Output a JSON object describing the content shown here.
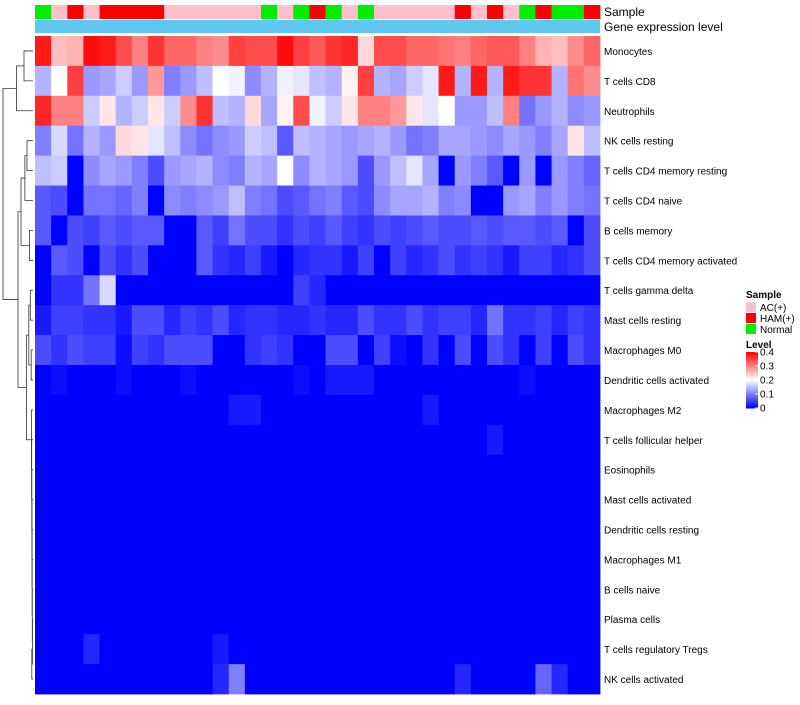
{
  "chart_data": {
    "type": "heatmap",
    "title": "",
    "annotation_labels": {
      "sample": "Sample",
      "gene_expression": "Gene expression level"
    },
    "rows": [
      "Monocytes",
      "T cells CD8",
      "Neutrophils",
      "NK cells resting",
      "T cells CD4 memory resting",
      "T cells CD4 naive",
      "B cells memory",
      "T cells CD4 memory activated",
      "T cells gamma delta",
      "Mast cells resting",
      "Macrophages M0",
      "Dendritic cells activated",
      "Macrophages M2",
      "T cells follicular helper",
      "Eosinophils",
      "Mast cells activated",
      "Dendritic cells resting",
      "Macrophages M1",
      "B cells naive",
      "Plasma cells",
      "T cells regulatory  Tregs",
      "NK cells activated"
    ],
    "sample_groups": [
      "Normal",
      "AC(+)",
      "HAM(+)",
      "AC(+)",
      "HAM(+)",
      "HAM(+)",
      "HAM(+)",
      "HAM(+)",
      "AC(+)",
      "AC(+)",
      "AC(+)",
      "AC(+)",
      "AC(+)",
      "AC(+)",
      "Normal",
      "AC(+)",
      "Normal",
      "HAM(+)",
      "Normal",
      "AC(+)",
      "Normal",
      "AC(+)",
      "AC(+)",
      "AC(+)",
      "AC(+)",
      "AC(+)",
      "HAM(+)",
      "AC(+)",
      "HAM(+)",
      "AC(+)",
      "Normal",
      "HAM(+)",
      "Normal",
      "Normal",
      "HAM(+)"
    ],
    "values": [
      [
        0.38,
        0.25,
        0.26,
        0.39,
        0.38,
        0.34,
        0.3,
        0.36,
        0.32,
        0.32,
        0.3,
        0.29,
        0.35,
        0.34,
        0.34,
        0.39,
        0.35,
        0.33,
        0.36,
        0.37,
        0.23,
        0.34,
        0.34,
        0.32,
        0.32,
        0.31,
        0.3,
        0.32,
        0.33,
        0.33,
        0.3,
        0.26,
        0.25,
        0.29,
        0.32
      ],
      [
        0.14,
        0.2,
        0.35,
        0.12,
        0.13,
        0.16,
        0.12,
        0.28,
        0.1,
        0.12,
        0.15,
        0.2,
        0.19,
        0.11,
        0.14,
        0.19,
        0.18,
        0.15,
        0.14,
        0.21,
        0.35,
        0.14,
        0.13,
        0.16,
        0.18,
        0.38,
        0.14,
        0.38,
        0.14,
        0.38,
        0.36,
        0.36,
        0.14,
        0.31,
        0.29
      ],
      [
        0.37,
        0.3,
        0.3,
        0.16,
        0.22,
        0.14,
        0.16,
        0.22,
        0.16,
        0.29,
        0.36,
        0.15,
        0.14,
        0.23,
        0.13,
        0.21,
        0.34,
        0.19,
        0.16,
        0.22,
        0.3,
        0.3,
        0.28,
        0.22,
        0.18,
        0.2,
        0.12,
        0.12,
        0.15,
        0.3,
        0.09,
        0.12,
        0.14,
        0.11,
        0.12
      ],
      [
        0.1,
        0.17,
        0.09,
        0.14,
        0.12,
        0.23,
        0.22,
        0.18,
        0.15,
        0.11,
        0.09,
        0.11,
        0.12,
        0.16,
        0.15,
        0.07,
        0.15,
        0.14,
        0.13,
        0.12,
        0.13,
        0.14,
        0.12,
        0.09,
        0.1,
        0.13,
        0.13,
        0.12,
        0.11,
        0.13,
        0.12,
        0.1,
        0.13,
        0.22,
        0.15
      ],
      [
        0.15,
        0.16,
        0.0,
        0.11,
        0.13,
        0.12,
        0.1,
        0.06,
        0.12,
        0.13,
        0.14,
        0.11,
        0.1,
        0.14,
        0.13,
        0.2,
        0.11,
        0.14,
        0.13,
        0.12,
        0.06,
        0.12,
        0.15,
        0.18,
        0.13,
        0.0,
        0.12,
        0.1,
        0.07,
        0.0,
        0.12,
        0.0,
        0.12,
        0.1,
        0.08
      ],
      [
        0.07,
        0.06,
        0.0,
        0.09,
        0.09,
        0.08,
        0.1,
        0.0,
        0.11,
        0.1,
        0.11,
        0.12,
        0.15,
        0.1,
        0.09,
        0.06,
        0.07,
        0.09,
        0.1,
        0.07,
        0.06,
        0.11,
        0.13,
        0.13,
        0.14,
        0.1,
        0.11,
        0.0,
        0.0,
        0.12,
        0.13,
        0.1,
        0.12,
        0.1,
        0.09
      ],
      [
        0.07,
        0.0,
        0.06,
        0.05,
        0.07,
        0.06,
        0.07,
        0.07,
        0.0,
        0.0,
        0.07,
        0.05,
        0.09,
        0.06,
        0.06,
        0.04,
        0.06,
        0.05,
        0.07,
        0.05,
        0.04,
        0.06,
        0.05,
        0.06,
        0.07,
        0.06,
        0.06,
        0.07,
        0.06,
        0.07,
        0.07,
        0.06,
        0.07,
        0.0,
        0.06
      ],
      [
        0.0,
        0.07,
        0.06,
        0.0,
        0.06,
        0.04,
        0.06,
        0.0,
        0.0,
        0.0,
        0.07,
        0.04,
        0.03,
        0.05,
        0.02,
        0.0,
        0.03,
        0.04,
        0.04,
        0.02,
        0.05,
        0.0,
        0.05,
        0.03,
        0.04,
        0.06,
        0.04,
        0.05,
        0.04,
        0.02,
        0.05,
        0.05,
        0.03,
        0.04,
        0.06
      ],
      [
        0.0,
        0.04,
        0.04,
        0.09,
        0.17,
        0.0,
        0.0,
        0.0,
        0.0,
        0.0,
        0.0,
        0.0,
        0.0,
        0.0,
        0.0,
        0.0,
        0.05,
        0.03,
        0.0,
        0.0,
        0.0,
        0.0,
        0.0,
        0.0,
        0.0,
        0.0,
        0.0,
        0.0,
        0.0,
        0.0,
        0.0,
        0.0,
        0.0,
        0.0,
        0.0
      ],
      [
        0.02,
        0.05,
        0.05,
        0.04,
        0.04,
        0.02,
        0.06,
        0.06,
        0.03,
        0.05,
        0.04,
        0.06,
        0.03,
        0.04,
        0.04,
        0.03,
        0.03,
        0.04,
        0.03,
        0.03,
        0.06,
        0.04,
        0.04,
        0.06,
        0.04,
        0.05,
        0.05,
        0.03,
        0.09,
        0.04,
        0.04,
        0.05,
        0.03,
        0.05,
        0.04
      ],
      [
        0.06,
        0.04,
        0.06,
        0.05,
        0.05,
        0.01,
        0.05,
        0.04,
        0.06,
        0.06,
        0.06,
        0.0,
        0.0,
        0.04,
        0.05,
        0.04,
        0.0,
        0.0,
        0.06,
        0.06,
        0.0,
        0.05,
        0.01,
        0.0,
        0.04,
        0.0,
        0.06,
        0.0,
        0.06,
        0.04,
        0.0,
        0.05,
        0.0,
        0.06,
        0.04
      ],
      [
        0.0,
        0.01,
        0.0,
        0.0,
        0.0,
        0.01,
        0.0,
        0.0,
        0.0,
        0.01,
        0.0,
        0.0,
        0.0,
        0.0,
        0.0,
        0.0,
        0.01,
        0.0,
        0.02,
        0.02,
        0.02,
        0.0,
        0.0,
        0.0,
        0.0,
        0.0,
        0.0,
        0.0,
        0.0,
        0.0,
        0.01,
        0.0,
        0.0,
        0.0,
        0.0
      ],
      [
        0.0,
        0.0,
        0.0,
        0.0,
        0.0,
        0.0,
        0.0,
        0.0,
        0.0,
        0.0,
        0.0,
        0.0,
        0.02,
        0.02,
        0.0,
        0.0,
        0.0,
        0.0,
        0.0,
        0.0,
        0.0,
        0.0,
        0.0,
        0.0,
        0.02,
        0.0,
        0.0,
        0.0,
        0.0,
        0.0,
        0.0,
        0.0,
        0.0,
        0.0,
        0.0
      ],
      [
        0.0,
        0.0,
        0.0,
        0.0,
        0.0,
        0.0,
        0.0,
        0.0,
        0.0,
        0.0,
        0.0,
        0.0,
        0.0,
        0.0,
        0.0,
        0.0,
        0.0,
        0.0,
        0.0,
        0.0,
        0.0,
        0.0,
        0.0,
        0.0,
        0.0,
        0.0,
        0.0,
        0.0,
        0.02,
        0.0,
        0.0,
        0.0,
        0.0,
        0.0,
        0.0
      ],
      [
        0.0,
        0.0,
        0.0,
        0.0,
        0.0,
        0.0,
        0.0,
        0.0,
        0.0,
        0.0,
        0.0,
        0.0,
        0.0,
        0.0,
        0.0,
        0.0,
        0.0,
        0.0,
        0.0,
        0.0,
        0.0,
        0.0,
        0.0,
        0.0,
        0.0,
        0.0,
        0.0,
        0.0,
        0.0,
        0.0,
        0.0,
        0.0,
        0.0,
        0.0,
        0.0
      ],
      [
        0.0,
        0.0,
        0.0,
        0.0,
        0.0,
        0.0,
        0.0,
        0.0,
        0.0,
        0.0,
        0.0,
        0.0,
        0.0,
        0.0,
        0.0,
        0.0,
        0.0,
        0.0,
        0.0,
        0.0,
        0.0,
        0.0,
        0.0,
        0.0,
        0.0,
        0.0,
        0.0,
        0.0,
        0.0,
        0.0,
        0.0,
        0.0,
        0.0,
        0.0,
        0.0
      ],
      [
        0.0,
        0.0,
        0.0,
        0.0,
        0.0,
        0.0,
        0.0,
        0.0,
        0.0,
        0.0,
        0.0,
        0.0,
        0.0,
        0.0,
        0.0,
        0.0,
        0.0,
        0.0,
        0.0,
        0.0,
        0.0,
        0.0,
        0.0,
        0.0,
        0.0,
        0.0,
        0.0,
        0.0,
        0.0,
        0.0,
        0.0,
        0.0,
        0.0,
        0.0,
        0.0
      ],
      [
        0.0,
        0.0,
        0.0,
        0.0,
        0.0,
        0.0,
        0.0,
        0.0,
        0.0,
        0.0,
        0.0,
        0.0,
        0.0,
        0.0,
        0.0,
        0.0,
        0.0,
        0.0,
        0.0,
        0.0,
        0.0,
        0.0,
        0.0,
        0.0,
        0.0,
        0.0,
        0.0,
        0.0,
        0.0,
        0.0,
        0.0,
        0.0,
        0.0,
        0.0,
        0.0
      ],
      [
        0.0,
        0.0,
        0.0,
        0.0,
        0.0,
        0.0,
        0.0,
        0.0,
        0.0,
        0.0,
        0.0,
        0.0,
        0.0,
        0.0,
        0.0,
        0.0,
        0.0,
        0.0,
        0.0,
        0.0,
        0.0,
        0.0,
        0.0,
        0.0,
        0.0,
        0.0,
        0.0,
        0.0,
        0.0,
        0.0,
        0.0,
        0.0,
        0.0,
        0.0,
        0.0
      ],
      [
        0.0,
        0.0,
        0.0,
        0.0,
        0.0,
        0.0,
        0.0,
        0.0,
        0.0,
        0.0,
        0.0,
        0.0,
        0.0,
        0.0,
        0.0,
        0.0,
        0.0,
        0.0,
        0.0,
        0.0,
        0.0,
        0.0,
        0.0,
        0.0,
        0.0,
        0.0,
        0.0,
        0.0,
        0.0,
        0.0,
        0.0,
        0.0,
        0.0,
        0.0,
        0.0
      ],
      [
        0.0,
        0.0,
        0.0,
        0.03,
        0.0,
        0.0,
        0.0,
        0.0,
        0.0,
        0.0,
        0.0,
        0.02,
        0.0,
        0.0,
        0.0,
        0.0,
        0.0,
        0.0,
        0.0,
        0.0,
        0.0,
        0.0,
        0.0,
        0.0,
        0.0,
        0.0,
        0.0,
        0.0,
        0.0,
        0.0,
        0.0,
        0.0,
        0.0,
        0.0,
        0.0
      ],
      [
        0.0,
        0.0,
        0.0,
        0.0,
        0.0,
        0.0,
        0.0,
        0.0,
        0.0,
        0.0,
        0.0,
        0.03,
        0.1,
        0.0,
        0.0,
        0.0,
        0.0,
        0.0,
        0.0,
        0.0,
        0.0,
        0.0,
        0.0,
        0.0,
        0.0,
        0.0,
        0.03,
        0.0,
        0.0,
        0.0,
        0.0,
        0.08,
        0.03,
        0.0,
        0.0
      ]
    ],
    "color_scale": {
      "min": 0,
      "max": 0.4,
      "low": "#0000ff",
      "mid": "#ffffff",
      "high": "#ff0000",
      "mid_value": 0.2
    },
    "sample_colors": {
      "AC(+)": "#ffc0cb",
      "HAM(+)": "#ff0000",
      "Normal": "#00ee00"
    },
    "gene_expression_color": "#5fc8f0",
    "legend": {
      "sample_title": "Sample",
      "sample_entries": [
        "AC(+)",
        "HAM(+)",
        "Normal"
      ],
      "level_title": "Level",
      "level_ticks": [
        "0.4",
        "0.3",
        "0.2",
        "0.1",
        "0"
      ],
      "position": "right"
    }
  }
}
